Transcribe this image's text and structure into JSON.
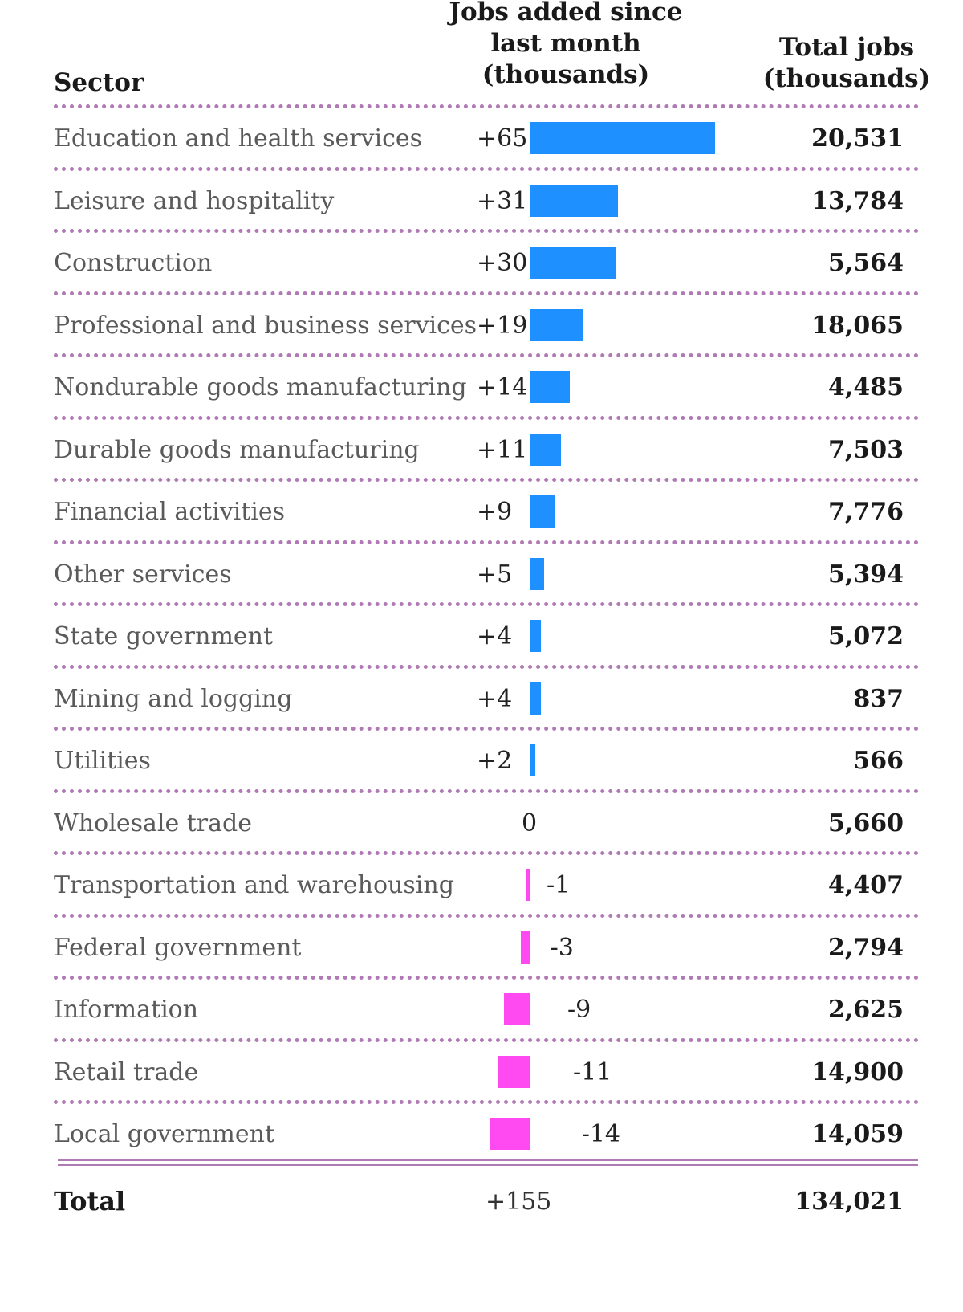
{
  "chart_data": {
    "type": "bar",
    "columns": {
      "sector": "Sector",
      "jobs_added": "Jobs added since last month (thousands)",
      "jobs_added_lines": [
        "Jobs added since",
        "last month",
        "(thousands)"
      ],
      "total_jobs": "Total jobs (thousands)",
      "total_jobs_lines": [
        "Total jobs",
        "(thousands)"
      ]
    },
    "rows": [
      {
        "sector": "Education and health services",
        "change": 65,
        "change_label": "+65",
        "total": 20531,
        "total_label": "20,531"
      },
      {
        "sector": "Leisure and hospitality",
        "change": 31,
        "change_label": "+31",
        "total": 13784,
        "total_label": "13,784"
      },
      {
        "sector": "Construction",
        "change": 30,
        "change_label": "+30",
        "total": 5564,
        "total_label": "5,564"
      },
      {
        "sector": "Professional and business services",
        "change": 19,
        "change_label": "+19",
        "total": 18065,
        "total_label": "18,065"
      },
      {
        "sector": "Nondurable goods manufacturing",
        "change": 14,
        "change_label": "+14",
        "total": 4485,
        "total_label": "4,485"
      },
      {
        "sector": "Durable goods manufacturing",
        "change": 11,
        "change_label": "+11",
        "total": 7503,
        "total_label": "7,503"
      },
      {
        "sector": "Financial activities",
        "change": 9,
        "change_label": "+9",
        "total": 7776,
        "total_label": "7,776"
      },
      {
        "sector": "Other services",
        "change": 5,
        "change_label": "+5",
        "total": 5394,
        "total_label": "5,394"
      },
      {
        "sector": "State government",
        "change": 4,
        "change_label": "+4",
        "total": 5072,
        "total_label": "5,072"
      },
      {
        "sector": "Mining and logging",
        "change": 4,
        "change_label": "+4",
        "total": 837,
        "total_label": "837"
      },
      {
        "sector": "Utilities",
        "change": 2,
        "change_label": "+2",
        "total": 566,
        "total_label": "566"
      },
      {
        "sector": "Wholesale trade",
        "change": 0,
        "change_label": "0",
        "total": 5660,
        "total_label": "5,660"
      },
      {
        "sector": "Transportation and warehousing",
        "change": -1,
        "change_label": "-1",
        "total": 4407,
        "total_label": "4,407"
      },
      {
        "sector": "Federal government",
        "change": -3,
        "change_label": "-3",
        "total": 2794,
        "total_label": "2,794"
      },
      {
        "sector": "Information",
        "change": -9,
        "change_label": "-9",
        "total": 2625,
        "total_label": "2,625"
      },
      {
        "sector": "Retail trade",
        "change": -11,
        "change_label": "-11",
        "total": 14900,
        "total_label": "14,900"
      },
      {
        "sector": "Local government",
        "change": -14,
        "change_label": "-14",
        "total": 14059,
        "total_label": "14,059"
      }
    ],
    "total": {
      "sector": "Total",
      "change": 155,
      "change_label": "+155",
      "total": 134021,
      "total_label": "134,021"
    },
    "colors": {
      "positive": "#1e90ff",
      "negative": "#ff4af2",
      "separator": "#b07ab5"
    }
  }
}
